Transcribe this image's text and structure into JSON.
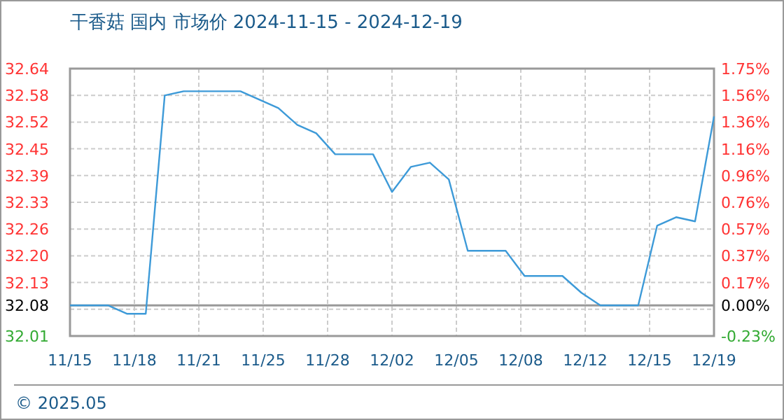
{
  "chart_data": {
    "type": "line",
    "title": "干香菇 国内 市场价 2024-11-15 - 2024-12-19",
    "x": [
      "2024-11-15",
      "2024-11-17",
      "2024-11-18",
      "2024-11-19",
      "2024-11-20",
      "2024-11-21",
      "2024-11-24",
      "2024-11-25",
      "2024-11-26",
      "2024-11-27",
      "2024-11-28",
      "2024-11-29",
      "2024-12-01",
      "2024-12-02",
      "2024-12-03",
      "2024-12-04",
      "2024-12-05",
      "2024-12-06",
      "2024-12-08",
      "2024-12-09",
      "2024-12-11",
      "2024-12-12",
      "2024-12-13",
      "2024-12-15",
      "2024-12-16",
      "2024-12-17",
      "2024-12-18",
      "2024-12-19"
    ],
    "series": [
      {
        "color": "#3d9ad8",
        "values": [
          32.08,
          32.08,
          32.06,
          32.06,
          32.58,
          32.59,
          32.59,
          32.57,
          32.55,
          32.51,
          32.49,
          32.44,
          32.44,
          32.35,
          32.41,
          32.42,
          32.38,
          32.21,
          32.21,
          32.15,
          32.15,
          32.11,
          32.08,
          32.08,
          32.27,
          32.29,
          32.28,
          32.53
        ]
      }
    ],
    "xlim": [
      "2024-11-15",
      "2024-12-19"
    ],
    "xticks": [
      {
        "value": "2024-11-15",
        "label": "11/15"
      },
      {
        "value": "2024-11-18T09:36",
        "label": "11/18"
      },
      {
        "value": "2024-11-21T19:12",
        "label": "11/21"
      },
      {
        "value": "2024-11-25T04:48",
        "label": "11/25"
      },
      {
        "value": "2024-11-28T14:24",
        "label": "11/28"
      },
      {
        "value": "2024-12-02",
        "label": "12/02"
      },
      {
        "value": "2024-12-05T09:36",
        "label": "12/05"
      },
      {
        "value": "2024-12-08T19:12",
        "label": "12/08"
      },
      {
        "value": "2024-12-12T04:48",
        "label": "12/12"
      },
      {
        "value": "2024-12-15T14:24",
        "label": "12/15"
      },
      {
        "value": "2024-12-19",
        "label": "12/19"
      }
    ],
    "ylim": [
      32.007,
      32.644
    ],
    "yticks": [
      {
        "value": 32.007,
        "label": "32.01"
      },
      {
        "value": 32.0707,
        "label": null
      },
      32.08,
      {
        "value": 32.1344,
        "label": "32.13"
      },
      {
        "value": 32.1981,
        "label": "32.20"
      },
      {
        "value": 32.2618,
        "label": "32.26"
      },
      {
        "value": 32.3255,
        "label": "32.33"
      },
      {
        "value": 32.3892,
        "label": "32.39"
      },
      {
        "value": 32.4529,
        "label": "32.45"
      },
      {
        "value": 32.5166,
        "label": "32.52"
      },
      {
        "value": 32.5803,
        "label": "32.58"
      },
      {
        "value": 32.644,
        "label": "32.64"
      }
    ],
    "y2lim": [
      -0.226,
      1.754
    ],
    "y2ticks": [
      {
        "value": -0.226,
        "label": "-0.23%"
      },
      {
        "value": 0,
        "label": "0.00%"
      },
      {
        "value": 0.17,
        "label": "0.17%"
      },
      {
        "value": 0.368,
        "label": "0.37%"
      },
      {
        "value": 0.566,
        "label": "0.57%"
      },
      {
        "value": 0.764,
        "label": "0.76%"
      },
      {
        "value": 0.962,
        "label": "0.96%"
      },
      {
        "value": 1.16,
        "label": "1.16%"
      },
      {
        "value": 1.358,
        "label": "1.36%"
      },
      {
        "value": 1.556,
        "label": "1.56%"
      },
      {
        "value": 1.754,
        "label": "1.75%"
      }
    ],
    "ref_lines": [
      {
        "axis": "y",
        "value": 32.08,
        "color": "#999999"
      }
    ],
    "grid": true,
    "marker": "none",
    "line_style": "solid",
    "annotations": [
      "© 2025.05"
    ]
  }
}
